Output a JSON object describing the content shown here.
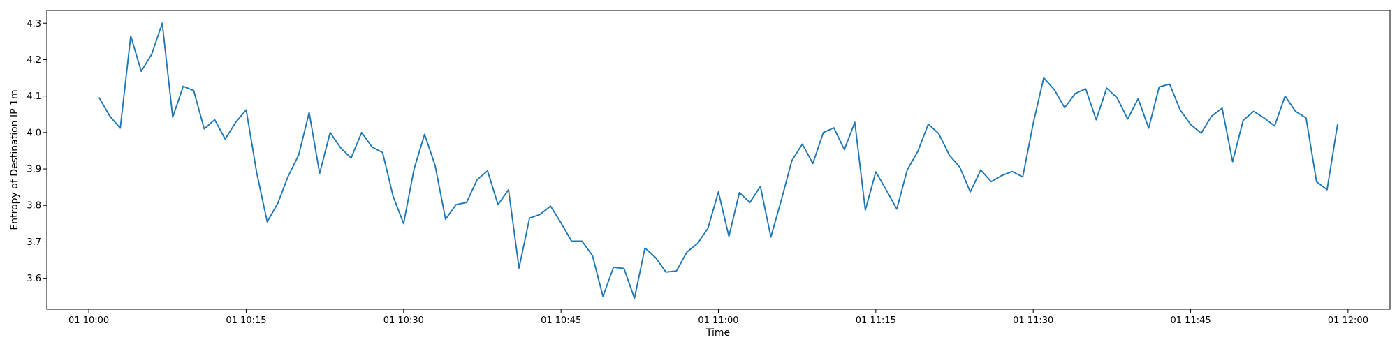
{
  "chart_data": {
    "type": "line",
    "title": "",
    "xlabel": "Time",
    "ylabel": "Entropy of Destination IP 1m",
    "x_start": "10:01",
    "x_step_minutes": 1,
    "xlim": [
      "09:56",
      "12:04"
    ],
    "ylim": [
      3.515,
      4.335
    ],
    "xticks": [
      {
        "t": "10:00",
        "label": "01 10:00"
      },
      {
        "t": "10:15",
        "label": "01 10:15"
      },
      {
        "t": "10:30",
        "label": "01 10:30"
      },
      {
        "t": "10:45",
        "label": "01 10:45"
      },
      {
        "t": "11:00",
        "label": "01 11:00"
      },
      {
        "t": "11:15",
        "label": "01 11:15"
      },
      {
        "t": "11:30",
        "label": "01 11:30"
      },
      {
        "t": "11:45",
        "label": "01 11:45"
      },
      {
        "t": "12:00",
        "label": "01 12:00"
      }
    ],
    "yticks": [
      {
        "v": 3.6,
        "label": "3.6"
      },
      {
        "v": 3.7,
        "label": "3.7"
      },
      {
        "v": 3.8,
        "label": "3.8"
      },
      {
        "v": 3.9,
        "label": "3.9"
      },
      {
        "v": 4.0,
        "label": "4.0"
      },
      {
        "v": 4.1,
        "label": "4.1"
      },
      {
        "v": 4.2,
        "label": "4.2"
      },
      {
        "v": 4.3,
        "label": "4.3"
      }
    ],
    "grid": false,
    "series": [
      {
        "color": "#1f77b4",
        "values": [
          4.095,
          4.045,
          4.012,
          4.265,
          4.168,
          4.215,
          4.3,
          4.042,
          4.127,
          4.115,
          4.01,
          4.035,
          3.982,
          4.028,
          4.062,
          3.89,
          3.755,
          3.805,
          3.88,
          3.938,
          4.055,
          3.888,
          4.0,
          3.958,
          3.93,
          4.0,
          3.96,
          3.945,
          3.825,
          3.75,
          3.9,
          3.995,
          3.91,
          3.762,
          3.802,
          3.808,
          3.87,
          3.895,
          3.802,
          3.843,
          3.628,
          3.765,
          3.775,
          3.798,
          3.752,
          3.702,
          3.702,
          3.662,
          3.55,
          3.63,
          3.627,
          3.545,
          3.683,
          3.657,
          3.617,
          3.62,
          3.672,
          3.695,
          3.737,
          3.837,
          3.715,
          3.835,
          3.808,
          3.852,
          3.713,
          3.815,
          3.923,
          3.968,
          3.915,
          4.0,
          4.013,
          3.953,
          4.028,
          3.787,
          3.892,
          3.842,
          3.79,
          3.898,
          3.948,
          4.023,
          3.997,
          3.938,
          3.905,
          3.837,
          3.897,
          3.865,
          3.882,
          3.893,
          3.878,
          4.025,
          4.15,
          4.118,
          4.068,
          4.107,
          4.12,
          4.035,
          4.122,
          4.095,
          4.037,
          4.093,
          4.012,
          4.125,
          4.133,
          4.062,
          4.022,
          3.998,
          4.045,
          4.067,
          3.92,
          4.033,
          4.058,
          4.04,
          4.018,
          4.1,
          4.058,
          4.04,
          3.865,
          3.843,
          4.022
        ]
      }
    ]
  }
}
